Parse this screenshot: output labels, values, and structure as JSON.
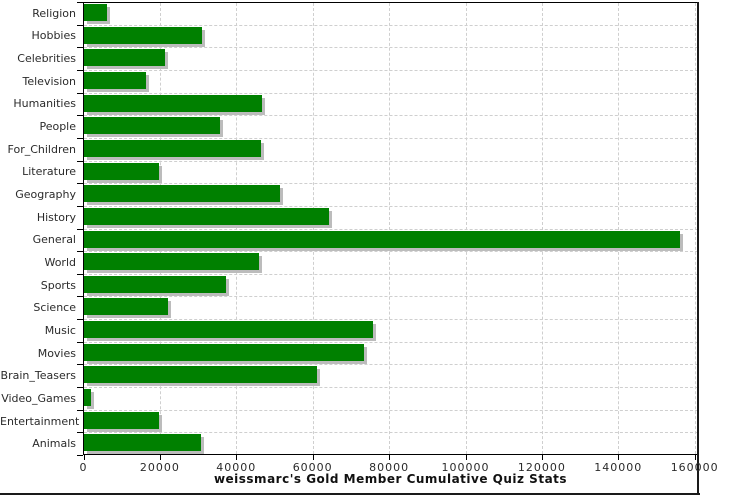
{
  "chart_data": {
    "type": "bar",
    "orientation": "horizontal",
    "title": "weissmarc's Gold Member Cumulative Quiz Stats",
    "categories": [
      "Religion",
      "Hobbies",
      "Celebrities",
      "Television",
      "Humanities",
      "People",
      "For_Children",
      "Literature",
      "Geography",
      "History",
      "General",
      "World",
      "Sports",
      "Science",
      "Music",
      "Movies",
      "Brain_Teasers",
      "Video_Games",
      "Entertainment",
      "Animals"
    ],
    "values": [
      5900,
      31000,
      21200,
      16300,
      46700,
      35700,
      46400,
      19700,
      51400,
      64200,
      156100,
      45900,
      37100,
      22000,
      75700,
      73300,
      60900,
      1900,
      19700,
      30700
    ],
    "x_ticks": [
      "0",
      "20000",
      "40000",
      "60000",
      "80000",
      "100000",
      "120000",
      "140000",
      "160000"
    ],
    "x_tick_values": [
      0,
      20000,
      40000,
      60000,
      80000,
      100000,
      120000,
      140000,
      160000
    ],
    "xlim": [
      0,
      161000
    ],
    "grid": "dashed",
    "legend_position": "none",
    "colors": {
      "bar": "#008000",
      "bar_shadow": "#bcbcbc",
      "grid": "#cfcfcf",
      "axis": "#000000",
      "text": "#2b2b2b"
    }
  }
}
